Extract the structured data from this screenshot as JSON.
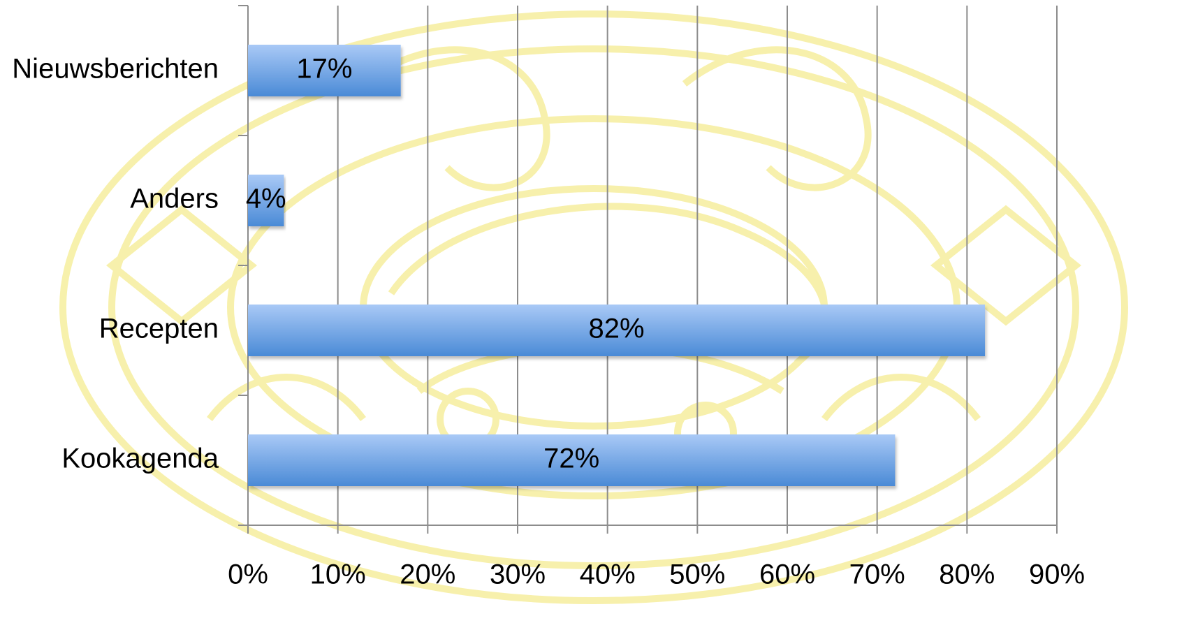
{
  "chart_data": {
    "type": "bar",
    "orientation": "horizontal",
    "categories": [
      "Nieuwsberichten",
      "Anders",
      "Recepten",
      "Kookagenda"
    ],
    "values": [
      17,
      4,
      82,
      72
    ],
    "data_labels": [
      "17%",
      "4%",
      "82%",
      "72%"
    ],
    "xlim": [
      0,
      90
    ],
    "x_tick_values": [
      0,
      10,
      20,
      30,
      40,
      50,
      60,
      70,
      80,
      90
    ],
    "x_tick_labels": [
      "0%",
      "10%",
      "20%",
      "30%",
      "40%",
      "50%",
      "60%",
      "70%",
      "80%",
      "90%"
    ],
    "grid": "vertical",
    "legend": "none",
    "bar_color_top": "#a9c9f6",
    "bar_color_bottom": "#4a8ad6",
    "watermark_color": "#f6ee9e",
    "title": "",
    "xlabel": "",
    "ylabel": ""
  }
}
